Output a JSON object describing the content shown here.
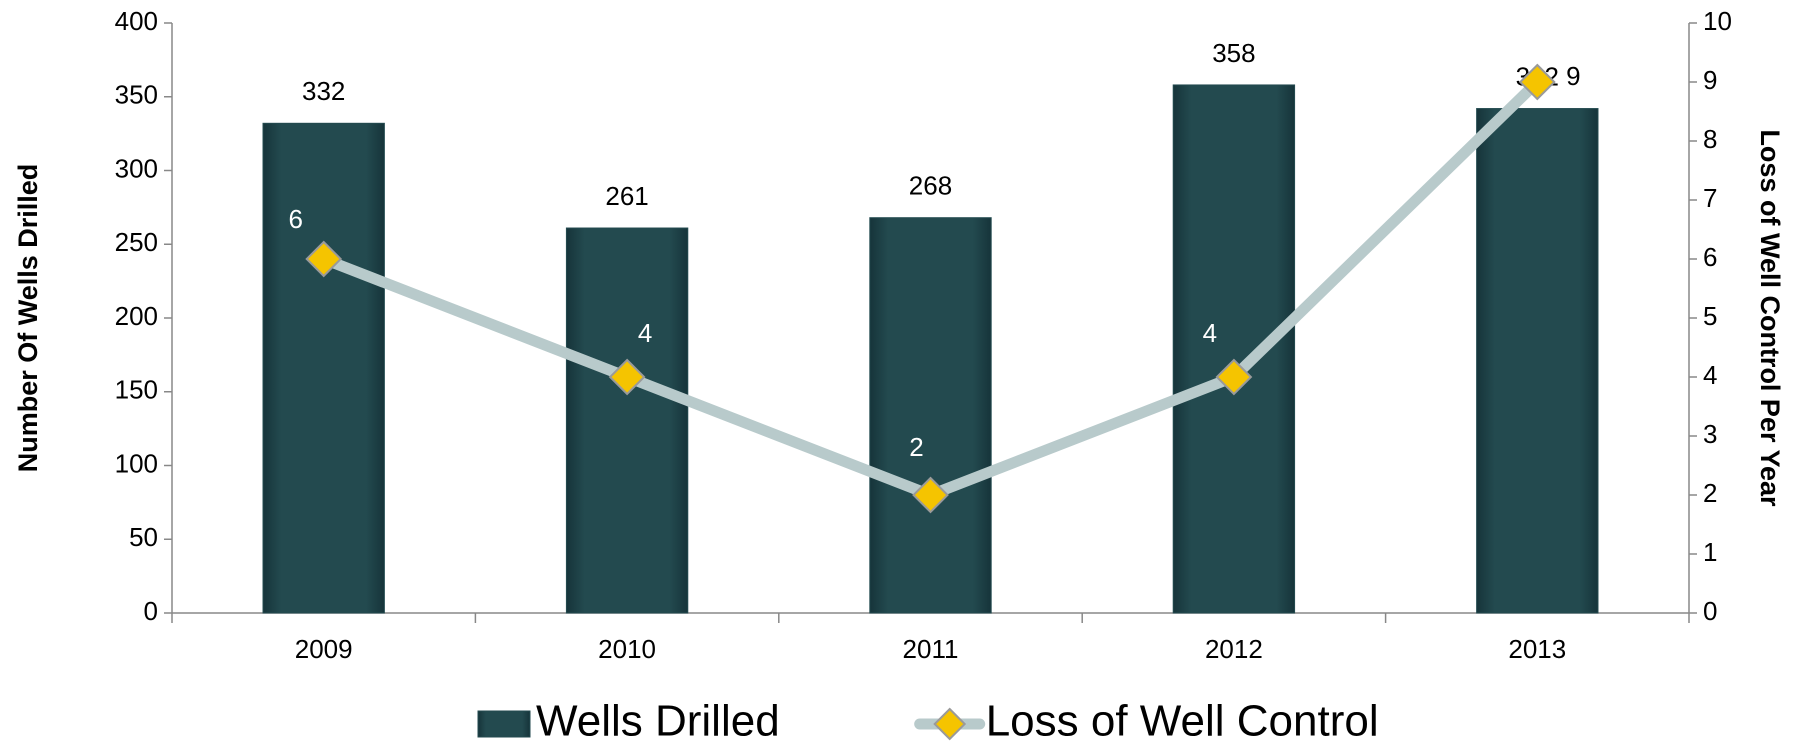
{
  "chart_data": {
    "type": "bar_line",
    "categories": [
      "2009",
      "2010",
      "2011",
      "2012",
      "2013"
    ],
    "series": [
      {
        "name": "Wells Drilled",
        "type": "bar",
        "color": "#234a4f",
        "values": [
          332,
          261,
          268,
          358,
          342
        ]
      },
      {
        "name": "Loss of Well Control",
        "type": "line",
        "axis": "y2",
        "color": "#b8cacb",
        "marker_color": "#f5c400",
        "values": [
          6,
          4,
          2,
          4,
          9
        ]
      }
    ],
    "ylabel": "Number Of Wells Drilled",
    "y2label": "Loss of Well Control Per Year",
    "ylim": [
      0,
      400
    ],
    "yticks": [
      0,
      50,
      100,
      150,
      200,
      250,
      300,
      350,
      400
    ],
    "y2lim": [
      0,
      10
    ],
    "y2ticks": [
      0,
      1,
      2,
      3,
      4,
      5,
      6,
      7,
      8,
      9,
      10
    ],
    "legend": "bottom",
    "grid": false
  }
}
